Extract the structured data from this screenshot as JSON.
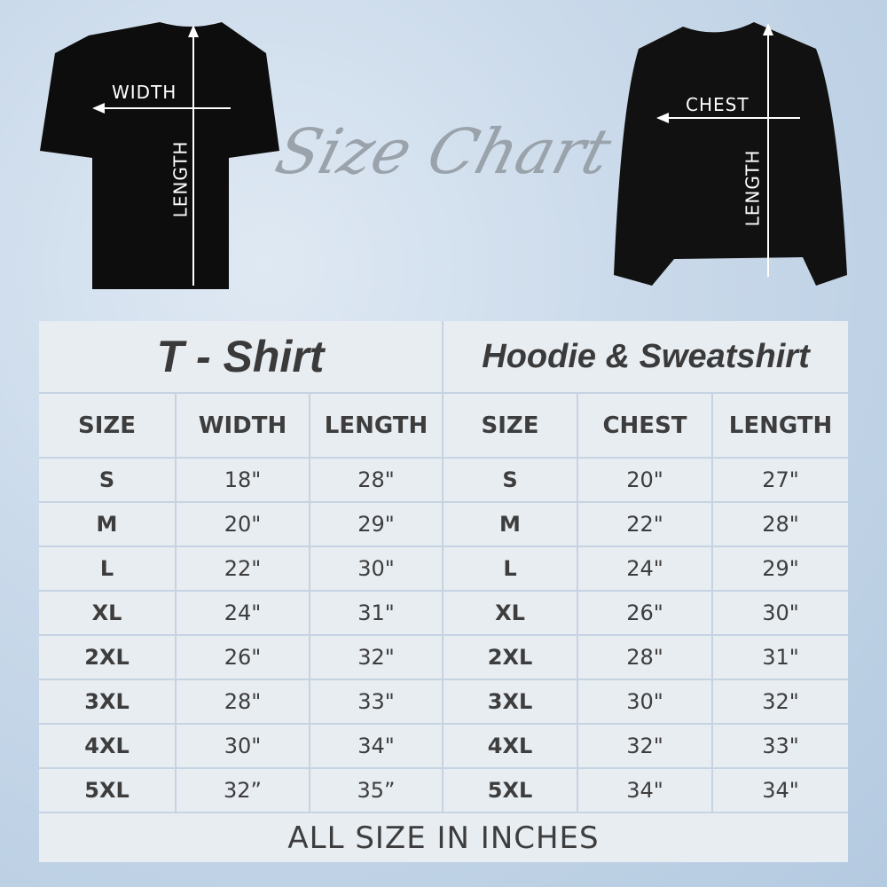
{
  "title": "Size Chart",
  "tshirt_image": {
    "width_label": "WIDTH",
    "length_label": "LENGTH"
  },
  "hoodie_image": {
    "chest_label": "CHEST",
    "length_label": "LENGTH"
  },
  "colors": {
    "cell": "#e8edf2",
    "border": "#c6d3e2",
    "text": "#3d3d3d"
  },
  "tshirt": {
    "heading": "T - Shirt",
    "columns": [
      "SIZE",
      "WIDTH",
      "LENGTH"
    ],
    "rows": [
      [
        "S",
        "18\"",
        "28\""
      ],
      [
        "M",
        "20\"",
        "29\""
      ],
      [
        "L",
        "22\"",
        "30\""
      ],
      [
        "XL",
        "24\"",
        "31\""
      ],
      [
        "2XL",
        "26\"",
        "32\""
      ],
      [
        "3XL",
        "28\"",
        "33\""
      ],
      [
        "4XL",
        "30\"",
        "34\""
      ],
      [
        "5XL",
        "32”",
        "35”"
      ]
    ]
  },
  "hoodie": {
    "heading": "Hoodie & Sweatshirt",
    "columns": [
      "SIZE",
      "CHEST",
      "LENGTH"
    ],
    "rows": [
      [
        "S",
        "20\"",
        "27\""
      ],
      [
        "M",
        "22\"",
        "28\""
      ],
      [
        "L",
        "24\"",
        "29\""
      ],
      [
        "XL",
        "26\"",
        "30\""
      ],
      [
        "2XL",
        "28\"",
        "31\""
      ],
      [
        "3XL",
        "30\"",
        "32\""
      ],
      [
        "4XL",
        "32\"",
        "33\""
      ],
      [
        "5XL",
        "34\"",
        "34\""
      ]
    ]
  },
  "footer": "ALL SIZE IN INCHES"
}
